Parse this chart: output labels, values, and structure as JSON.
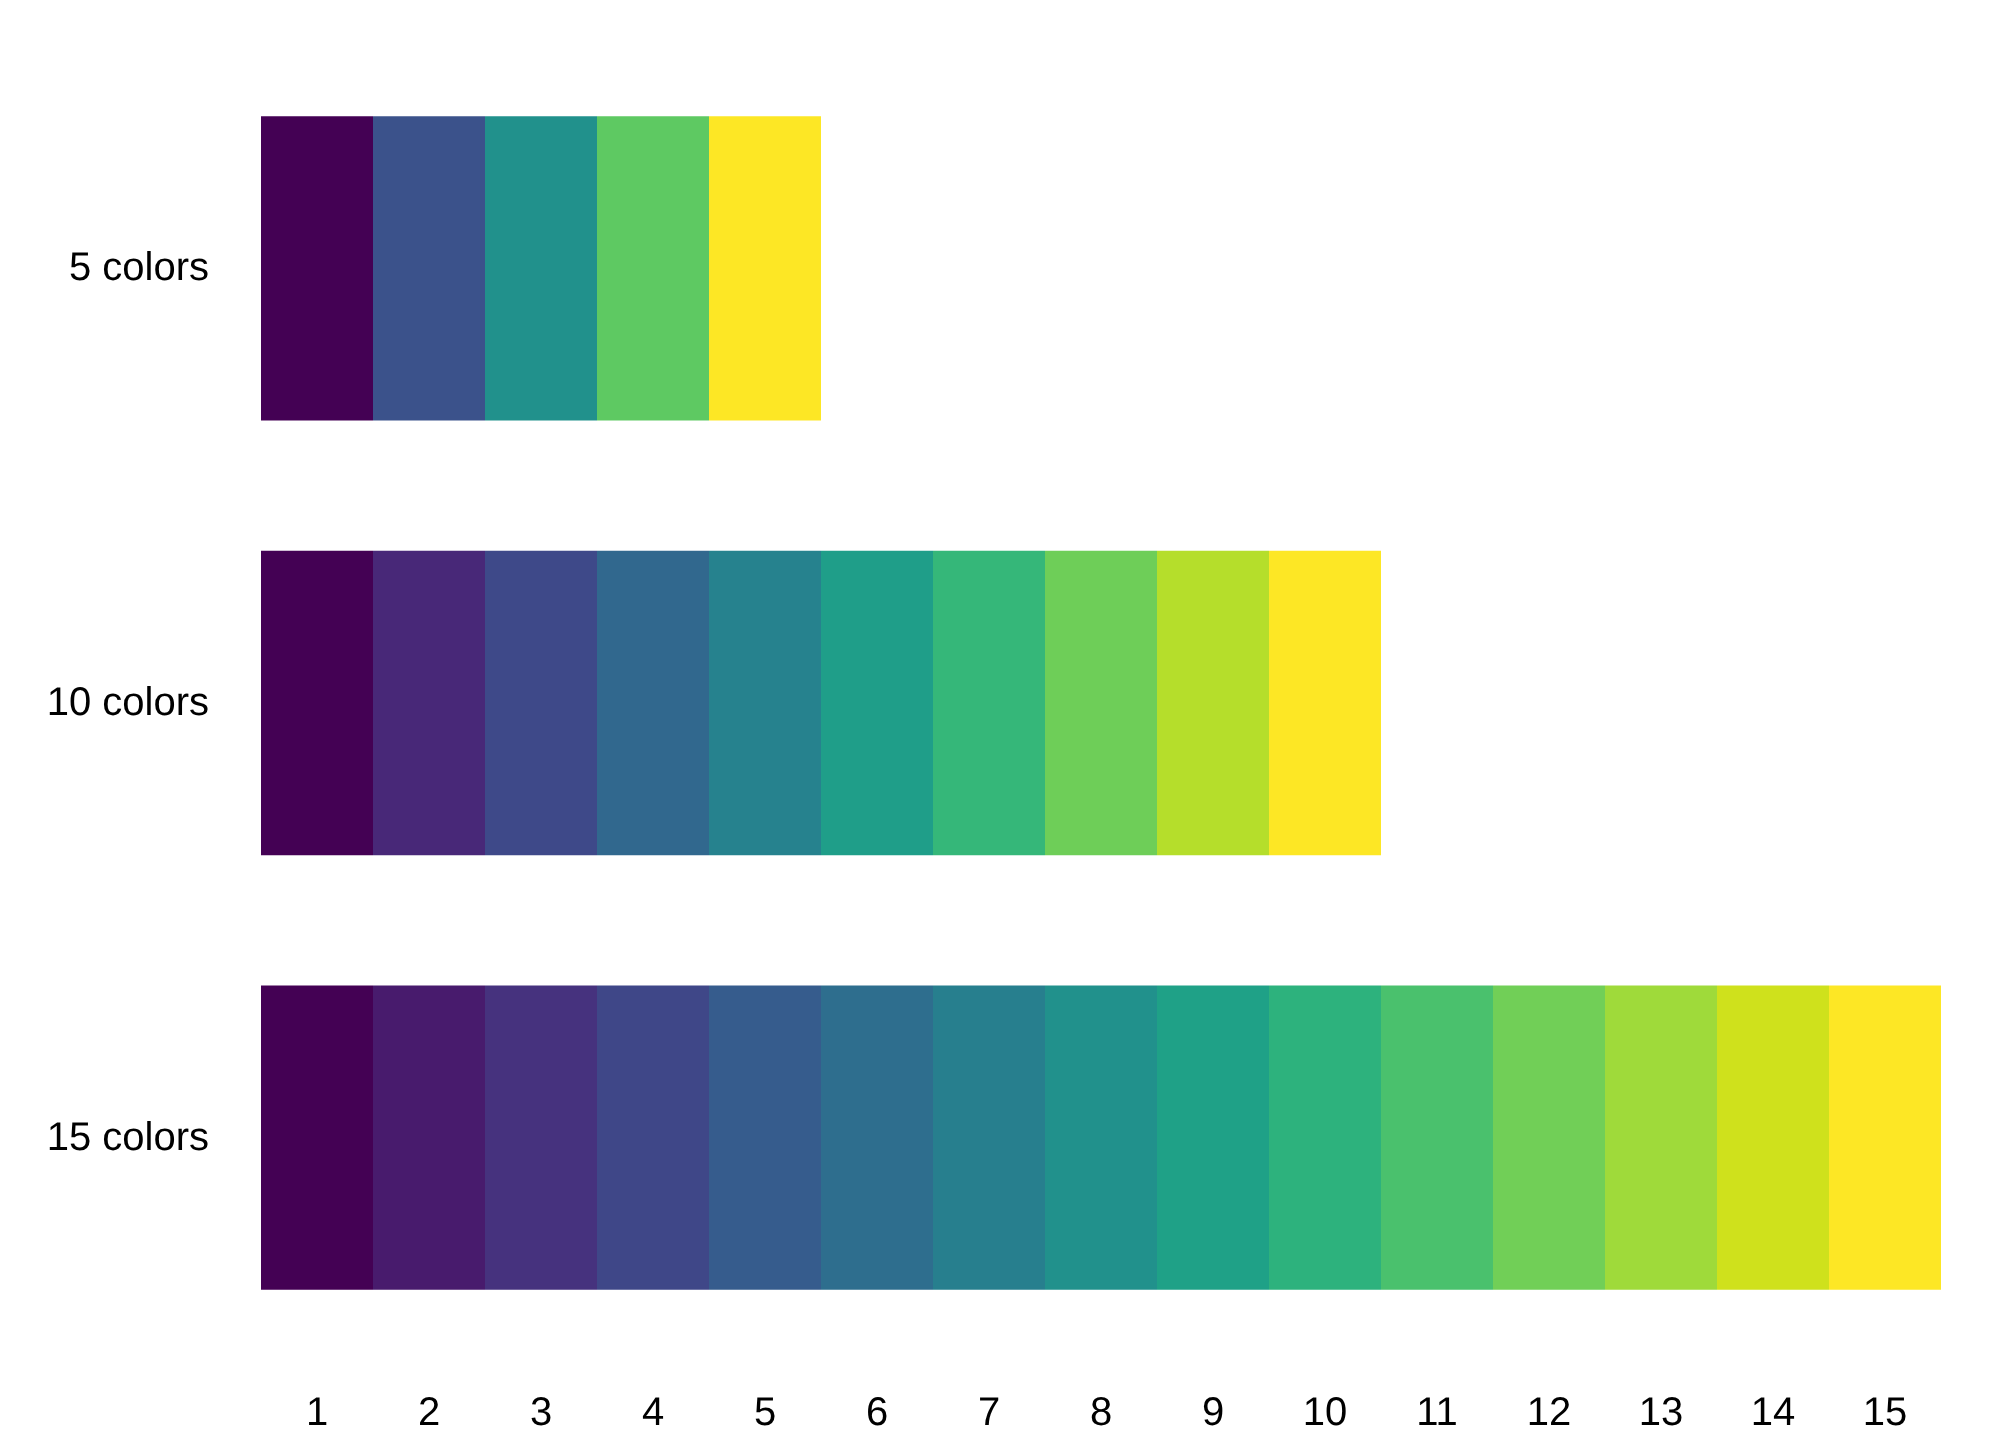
{
  "chart_data": {
    "type": "bar",
    "orientation": "horizontal",
    "stacked": true,
    "categories": [
      "5 colors",
      "10 colors",
      "15 colors"
    ],
    "xlim": [
      0,
      15
    ],
    "xticks": [
      {
        "value": 0.5,
        "label": "1"
      },
      {
        "value": 1.5,
        "label": "2"
      },
      {
        "value": 2.5,
        "label": "3"
      },
      {
        "value": 3.5,
        "label": "4"
      },
      {
        "value": 4.5,
        "label": "5"
      },
      {
        "value": 5.5,
        "label": "6"
      },
      {
        "value": 6.5,
        "label": "7"
      },
      {
        "value": 7.5,
        "label": "8"
      },
      {
        "value": 8.5,
        "label": "9"
      },
      {
        "value": 9.5,
        "label": "10"
      },
      {
        "value": 10.5,
        "label": "11"
      },
      {
        "value": 11.5,
        "label": "12"
      },
      {
        "value": 12.5,
        "label": "13"
      },
      {
        "value": 13.5,
        "label": "14"
      },
      {
        "value": 14.5,
        "label": "15"
      }
    ],
    "grid": false,
    "series": [
      {
        "values": [
          1,
          1,
          1
        ],
        "colors": [
          "#440154",
          "#440154",
          "#440154"
        ]
      },
      {
        "values": [
          1,
          1,
          1
        ],
        "colors": [
          "#3b528b",
          "#482878",
          "#481b6d"
        ]
      },
      {
        "values": [
          1,
          1,
          1
        ],
        "colors": [
          "#21918c",
          "#3e4989",
          "#46327e"
        ]
      },
      {
        "values": [
          1,
          1,
          1
        ],
        "colors": [
          "#5ec962",
          "#31688e",
          "#3f4788"
        ]
      },
      {
        "values": [
          1,
          1,
          1
        ],
        "colors": [
          "#fde725",
          "#26828e",
          "#365c8d"
        ]
      },
      {
        "values": [
          null,
          1,
          1
        ],
        "colors": [
          null,
          "#1f9e89",
          "#2e6e8e"
        ]
      },
      {
        "values": [
          null,
          1,
          1
        ],
        "colors": [
          null,
          "#35b779",
          "#277f8e"
        ]
      },
      {
        "values": [
          null,
          1,
          1
        ],
        "colors": [
          null,
          "#6ece58",
          "#21918c"
        ]
      },
      {
        "values": [
          null,
          1,
          1
        ],
        "colors": [
          null,
          "#b5de2b",
          "#1fa187"
        ]
      },
      {
        "values": [
          null,
          1,
          1
        ],
        "colors": [
          null,
          "#fde725",
          "#2db27d"
        ]
      },
      {
        "values": [
          null,
          null,
          1
        ],
        "colors": [
          null,
          null,
          "#4ac16d"
        ]
      },
      {
        "values": [
          null,
          null,
          1
        ],
        "colors": [
          null,
          null,
          "#71cf57"
        ]
      },
      {
        "values": [
          null,
          null,
          1
        ],
        "colors": [
          null,
          null,
          "#9fda3a"
        ]
      },
      {
        "values": [
          null,
          null,
          1
        ],
        "colors": [
          null,
          null,
          "#cfe11c"
        ]
      },
      {
        "values": [
          null,
          null,
          1
        ],
        "colors": [
          null,
          null,
          "#fde725"
        ]
      }
    ]
  }
}
